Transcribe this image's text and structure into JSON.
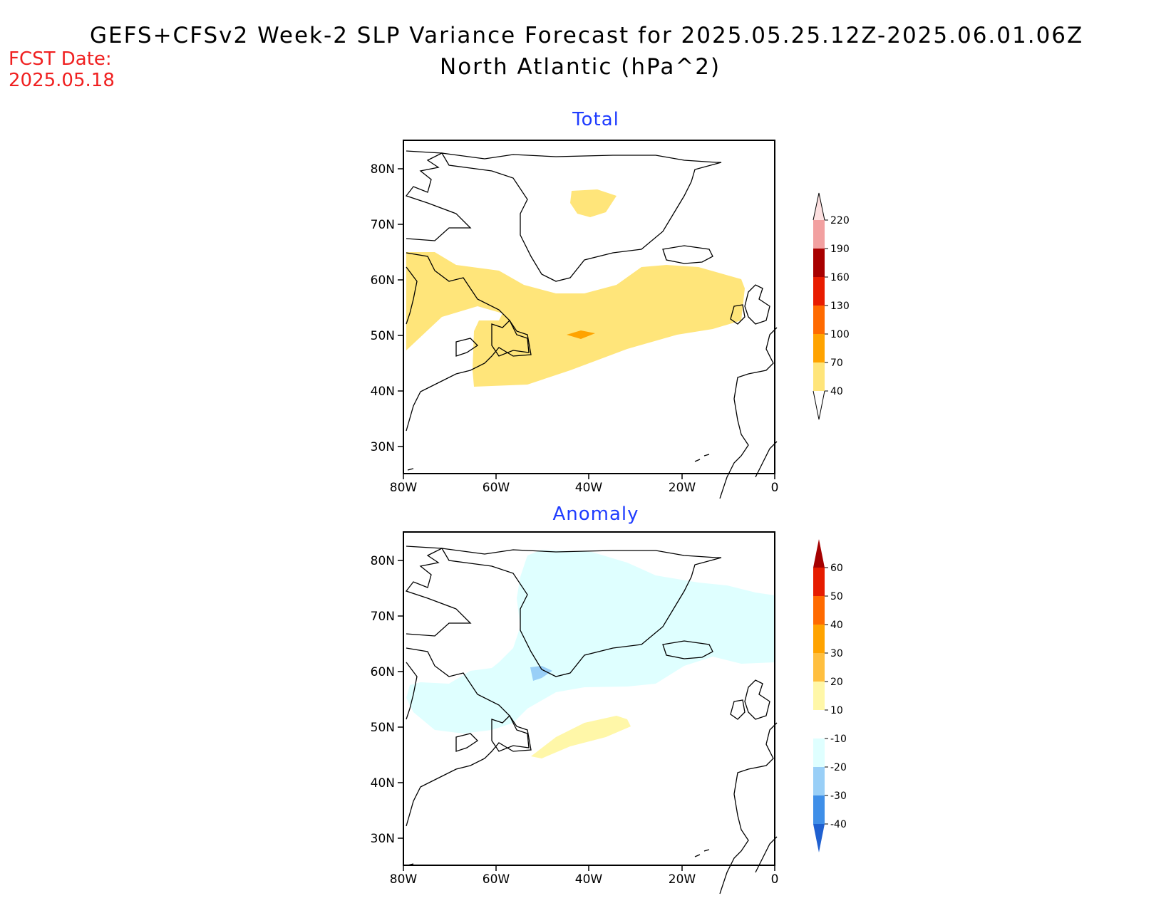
{
  "header": {
    "title_line1": "GEFS+CFSv2 Week-2 SLP Variance Forecast for 2025.05.25.12Z-2025.06.01.06Z",
    "title_line2": "North Atlantic (hPa^2)",
    "fcst_label": "FCST Date:",
    "fcst_date": "2025.05.18"
  },
  "panels": [
    {
      "id": "total",
      "title": "Total",
      "lat_labels": [
        "80N",
        "70N",
        "60N",
        "50N",
        "40N",
        "30N"
      ],
      "lon_labels": [
        "80W",
        "60W",
        "40W",
        "20W",
        "0"
      ],
      "colorbar": {
        "levels": [
          "40",
          "70",
          "100",
          "130",
          "160",
          "190",
          "220"
        ],
        "colors": [
          "#ffe57a",
          "#ffa300",
          "#ff6a00",
          "#e81c00",
          "#a80000",
          "#f2a0a0",
          "#fde0e0"
        ]
      }
    },
    {
      "id": "anomaly",
      "title": "Anomaly",
      "lat_labels": [
        "80N",
        "70N",
        "60N",
        "50N",
        "40N",
        "30N"
      ],
      "lon_labels": [
        "80W",
        "60W",
        "40W",
        "20W",
        "0"
      ],
      "colorbar": {
        "levels": [
          "60",
          "50",
          "40",
          "30",
          "20",
          "10",
          "-10",
          "-20",
          "-30",
          "-40"
        ],
        "colors": [
          "#a50000",
          "#e61c00",
          "#ff6a00",
          "#ffa300",
          "#ffbf3f",
          "#fff7a8",
          "#ffffff",
          "#dfffff",
          "#99cff7",
          "#3f8fe8",
          "#1f60d0"
        ]
      }
    }
  ],
  "colors": {
    "title_red": "#f02020",
    "panel_title_blue": "#1f3cff",
    "total_shade": "#ffe57a",
    "total_peak": "#ffa300",
    "anom_light_blue": "#dfffff",
    "anom_mid_blue": "#99cff7",
    "anom_yellow": "#fff7a8"
  }
}
